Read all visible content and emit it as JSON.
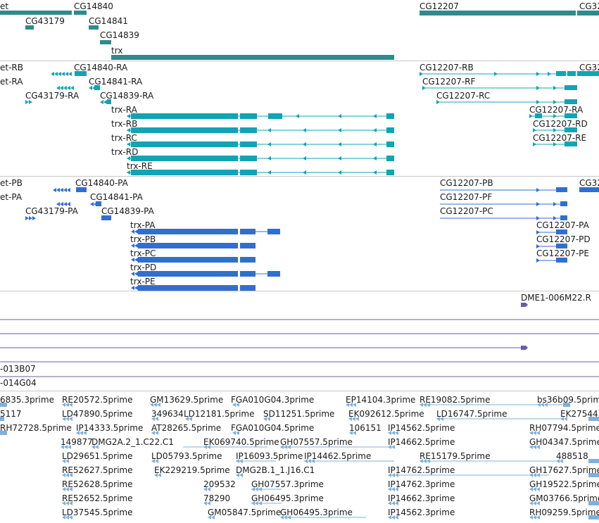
{
  "colors": {
    "gene": "#2e8b8b",
    "transcript_rna": "#10a4b4",
    "transcript_protein": "#2f6fd0",
    "cdna": "#6a5ca8",
    "est": "#7fb0dc",
    "separator": "#c8c8c8"
  },
  "tracks": {
    "genes": {
      "labels": [
        "et",
        "CG14840",
        "CG43179",
        "CG14841",
        "CG14839",
        "trx",
        "CG12207",
        "CG32"
      ]
    },
    "transcripts": {
      "labels": [
        "et-RB",
        "CG14840-RA",
        "et-RA",
        "CG14841-RA",
        "CG43179-RA",
        "CG14839-RA",
        "trx-RA",
        "trx-RB",
        "trx-RC",
        "trx-RD",
        "trx-RE",
        "CG12207-RB",
        "CG32",
        "CG12207-RF",
        "CG12207-RC",
        "CG12207-RA",
        "CG12207-RD",
        "CG12207-RE"
      ]
    },
    "proteins": {
      "labels": [
        "et-PB",
        "CG14840-PA",
        "et-PA",
        "CG14841-PA",
        "CG43179-PA",
        "CG14839-PA",
        "trx-PA",
        "trx-PB",
        "trx-PC",
        "trx-PD",
        "trx-PE",
        "CG12207-PB",
        "CG32",
        "CG12207-PF",
        "CG12207-PC",
        "CG12207-PA",
        "CG12207-PD",
        "CG12207-PE"
      ]
    },
    "cdna": {
      "labels": [
        "DME1-006M22.R",
        "-013B07",
        "-014G04"
      ]
    },
    "est": {
      "labels": [
        "6835.3prime",
        "RE20572.5prime",
        "GM13629.5prime",
        "FGA010G04.3prime",
        "EP14104.3prime",
        "RE19082.5prime",
        "bs36b09.5prime",
        "5117",
        "LD47890.5prime",
        "349634",
        "LD12181.5prime",
        "SD11251.5prime",
        "EK092612.5prime",
        "LD16747.5prime",
        "EK27544",
        "RH72728.5prime",
        "IP14333.5prime",
        "AT28265.5prime",
        "FGA010G04.5prime",
        "106151",
        "IP14562.5prime",
        "RH07794.5prime",
        "149877",
        "DMG2A.2_1.C22.C1",
        "EK069740.5prime",
        "GH07557.5prime",
        "IP14662.5prime",
        "GH04347.5prime",
        "LD29651.5prime",
        "LD05793.5prime",
        "IP16093.5prime",
        "IP14462.5prime",
        "RE15179.5prime",
        "488518",
        "RE52627.5prime",
        "EK229219.5prime",
        "DMG2B.1_1.J16.C1",
        "IP14762.5prime",
        "GH17627.5prime",
        "RE52628.5prime",
        "209532",
        "GH07557.3prime",
        "IP14762.3prime",
        "GH19522.5prime",
        "RE52652.5prime",
        "78290",
        "GH06495.3prime",
        "IP14662.3prime",
        "GM03766.5prime",
        "LD37545.5prime",
        "GM05847.5prime",
        "GH06495.3prime",
        "IP14562.3prime",
        "RH09259.5prime"
      ]
    }
  }
}
